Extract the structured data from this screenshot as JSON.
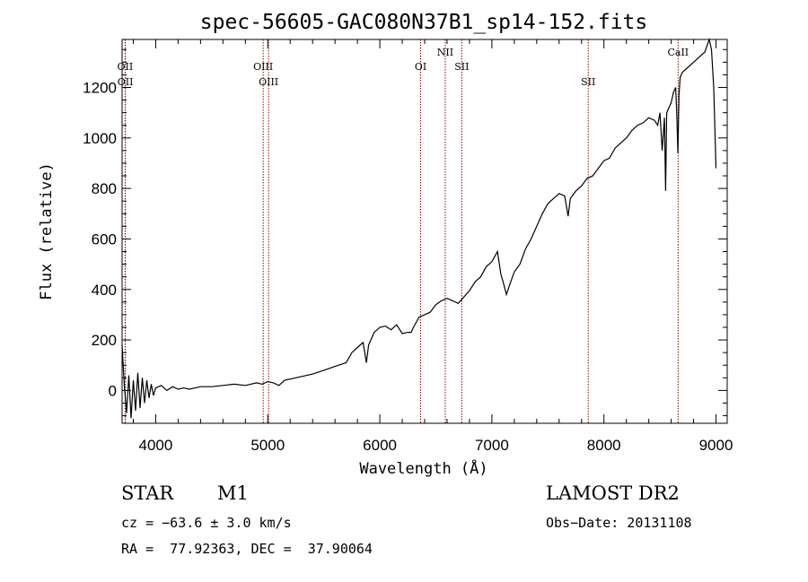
{
  "chart_data": {
    "type": "line",
    "title": "spec-56605-GAC080N37B1_sp14-152.fits",
    "xlabel": "Wavelength (Å)",
    "ylabel": "Flux (relative)",
    "xlim": [
      3700,
      9100
    ],
    "ylim": [
      -130,
      1390
    ],
    "xticks": [
      4000,
      5000,
      6000,
      7000,
      8000,
      9000
    ],
    "xtick_labels": [
      "4000",
      "5000",
      "6000",
      "7000",
      "8000",
      "9000"
    ],
    "yticks": [
      0,
      200,
      400,
      600,
      800,
      1000,
      1200
    ],
    "ytick_labels": [
      "0",
      "200",
      "400",
      "600",
      "800",
      "1000",
      "1200"
    ],
    "grid": false,
    "line_color": "#000000",
    "marker_color": "#8b0000",
    "series": [
      {
        "x": [
          3700,
          3720,
          3740,
          3760,
          3780,
          3800,
          3820,
          3840,
          3860,
          3880,
          3900,
          3920,
          3940,
          3960,
          3980,
          4000,
          4050,
          4100,
          4150,
          4200,
          4250,
          4300,
          4400,
          4500,
          4600,
          4700,
          4800,
          4900,
          4950,
          5000,
          5050,
          5100,
          5150,
          5200,
          5300,
          5400,
          5500,
          5600,
          5700,
          5750,
          5800,
          5850,
          5880,
          5900,
          5950,
          6000,
          6050,
          6100,
          6150,
          6200,
          6250,
          6280,
          6300,
          6350,
          6400,
          6450,
          6500,
          6550,
          6600,
          6650,
          6700,
          6750,
          6800,
          6850,
          6900,
          6950,
          7000,
          7050,
          7080,
          7100,
          7130,
          7160,
          7200,
          7250,
          7300,
          7350,
          7400,
          7450,
          7500,
          7550,
          7600,
          7650,
          7680,
          7700,
          7750,
          7800,
          7850,
          7900,
          7950,
          8000,
          8050,
          8100,
          8150,
          8200,
          8250,
          8300,
          8350,
          8400,
          8450,
          8480,
          8500,
          8520,
          8540,
          8550,
          8560,
          8580,
          8600,
          8620,
          8640,
          8650,
          8660,
          8670,
          8680,
          8700,
          8750,
          8800,
          8850,
          8900,
          8940,
          8960,
          8980,
          9000
        ],
        "y": [
          180,
          20,
          -90,
          60,
          -110,
          40,
          -80,
          70,
          -70,
          50,
          -50,
          40,
          -30,
          25,
          -20,
          10,
          20,
          0,
          15,
          5,
          10,
          5,
          15,
          15,
          20,
          25,
          20,
          30,
          25,
          35,
          30,
          20,
          40,
          45,
          55,
          65,
          80,
          95,
          110,
          150,
          170,
          190,
          110,
          180,
          230,
          250,
          255,
          240,
          260,
          225,
          230,
          230,
          250,
          290,
          300,
          310,
          340,
          355,
          365,
          355,
          345,
          370,
          395,
          430,
          450,
          490,
          510,
          550,
          460,
          430,
          380,
          420,
          470,
          500,
          560,
          600,
          650,
          700,
          740,
          760,
          780,
          770,
          690,
          760,
          790,
          810,
          840,
          850,
          880,
          910,
          920,
          960,
          980,
          1000,
          1030,
          1050,
          1060,
          1080,
          1070,
          1050,
          1100,
          950,
          1080,
          790,
          1100,
          1120,
          1140,
          1180,
          1200,
          1100,
          940,
          1170,
          1240,
          1260,
          1280,
          1300,
          1320,
          1340,
          1390,
          1350,
          1200,
          880
        ]
      }
    ],
    "line_markers": [
      {
        "label": "OII",
        "wavelength": 3727,
        "row": 0
      },
      {
        "label": "OII",
        "wavelength": 3729,
        "row": 1
      },
      {
        "label": "OIII",
        "wavelength": 4959,
        "row": 0
      },
      {
        "label": "OIII",
        "wavelength": 5007,
        "row": 1
      },
      {
        "label": "OI",
        "wavelength": 6364,
        "row": 0
      },
      {
        "label": "NII",
        "wavelength": 6584,
        "row": -1
      },
      {
        "label": "SII",
        "wavelength": 6731,
        "row": 0
      },
      {
        "label": "SII",
        "wavelength": 7860,
        "row": 1
      },
      {
        "label": "CaII",
        "wavelength": 8662,
        "row": -1
      }
    ]
  },
  "info": {
    "class": "STAR",
    "subclass": "M1",
    "survey": "LAMOST DR2",
    "cz": "cz = −63.6 ± 3.0 km/s",
    "obs_date": "Obs−Date: 20131108",
    "radec": "RA =  77.92363, DEC =  37.90064"
  }
}
